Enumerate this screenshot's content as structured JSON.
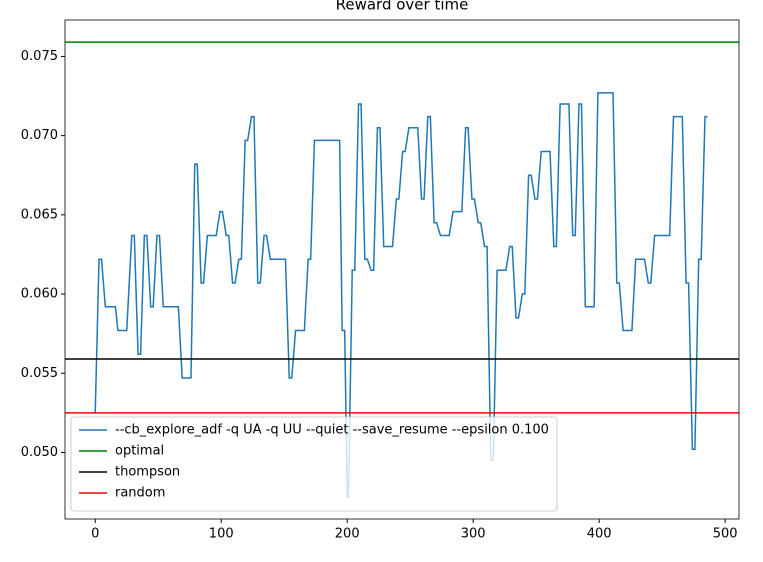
{
  "chart_data": {
    "type": "line",
    "title": "Reward over time",
    "xlim": [
      -24,
      511
    ],
    "xticks": [
      0,
      100,
      200,
      300,
      400,
      500
    ],
    "ylim": [
      0.0458,
      0.0773
    ],
    "yticks": [
      {
        "value": 0.05,
        "label": "0.050"
      },
      {
        "value": 0.055,
        "label": "0.055"
      },
      {
        "value": 0.06,
        "label": "0.060"
      },
      {
        "value": 0.065,
        "label": "0.065"
      },
      {
        "value": 0.07,
        "label": "0.070"
      },
      {
        "value": 0.075,
        "label": "0.075"
      }
    ],
    "legend": "lower left",
    "series": [
      {
        "name": "--cb_explore_adf -q UA -q UU --quiet --save_resume --epsilon 0.100",
        "color": "#1f77b4",
        "x": [
          0,
          3,
          5,
          8,
          16,
          18,
          25,
          29,
          31,
          34,
          36,
          39,
          41,
          44,
          46,
          49,
          51,
          54,
          66,
          69,
          76,
          79,
          81,
          84,
          86,
          89,
          96,
          99,
          101,
          104,
          106,
          109,
          111,
          114,
          116,
          119,
          121,
          124,
          126,
          129,
          131,
          134,
          136,
          139,
          151,
          154,
          156,
          159,
          166,
          169,
          171,
          174,
          194,
          196,
          198,
          200,
          201,
          204,
          206,
          209,
          211,
          214,
          216,
          219,
          221,
          224,
          226,
          229,
          236,
          239,
          241,
          244,
          246,
          249,
          256,
          259,
          261,
          264,
          266,
          269,
          271,
          274,
          281,
          284,
          291,
          294,
          296,
          299,
          301,
          304,
          306,
          309,
          311,
          314,
          316,
          319,
          326,
          329,
          331,
          334,
          336,
          339,
          341,
          344,
          346,
          349,
          351,
          354,
          361,
          364,
          366,
          369,
          376,
          379,
          381,
          384,
          386,
          389,
          396,
          399,
          411,
          414,
          416,
          419,
          426,
          429,
          436,
          439,
          441,
          444,
          456,
          459,
          466,
          469,
          471,
          474,
          476,
          479,
          481,
          484,
          486
        ],
        "values": [
          0.0525,
          0.0622,
          0.0622,
          0.0592,
          0.0592,
          0.0577,
          0.0577,
          0.0637,
          0.0637,
          0.0562,
          0.0562,
          0.0637,
          0.0637,
          0.0592,
          0.0592,
          0.0637,
          0.0637,
          0.0592,
          0.0592,
          0.0547,
          0.0547,
          0.0682,
          0.0682,
          0.0607,
          0.0607,
          0.0637,
          0.0637,
          0.0652,
          0.0652,
          0.0637,
          0.0637,
          0.0607,
          0.0607,
          0.0622,
          0.0622,
          0.0697,
          0.0697,
          0.0712,
          0.0712,
          0.0607,
          0.0607,
          0.0637,
          0.0637,
          0.0622,
          0.0622,
          0.0547,
          0.0547,
          0.0577,
          0.0577,
          0.0622,
          0.0622,
          0.0697,
          0.0697,
          0.0577,
          0.0577,
          0.0472,
          0.0472,
          0.0615,
          0.0615,
          0.072,
          0.072,
          0.0622,
          0.0622,
          0.0615,
          0.0615,
          0.0705,
          0.0705,
          0.063,
          0.063,
          0.066,
          0.066,
          0.069,
          0.069,
          0.0705,
          0.0705,
          0.066,
          0.066,
          0.0712,
          0.0712,
          0.0645,
          0.0645,
          0.0637,
          0.0637,
          0.0652,
          0.0652,
          0.0705,
          0.0705,
          0.066,
          0.066,
          0.0645,
          0.0645,
          0.063,
          0.063,
          0.0495,
          0.0495,
          0.0615,
          0.0615,
          0.063,
          0.063,
          0.0585,
          0.0585,
          0.06,
          0.06,
          0.0675,
          0.0675,
          0.066,
          0.066,
          0.069,
          0.069,
          0.063,
          0.063,
          0.072,
          0.072,
          0.0637,
          0.0637,
          0.072,
          0.072,
          0.0592,
          0.0592,
          0.0727,
          0.0727,
          0.0607,
          0.0607,
          0.0577,
          0.0577,
          0.0622,
          0.0622,
          0.0607,
          0.0607,
          0.0637,
          0.0637,
          0.0712,
          0.0712,
          0.0607,
          0.0607,
          0.0502,
          0.0502,
          0.0622,
          0.0622,
          0.0712,
          0.0712
        ]
      },
      {
        "name": "optimal",
        "color": "#008000",
        "value": 0.0759
      },
      {
        "name": "thompson",
        "color": "#000000",
        "value": 0.0559
      },
      {
        "name": "random",
        "color": "#ff0000",
        "value": 0.0525
      }
    ]
  }
}
